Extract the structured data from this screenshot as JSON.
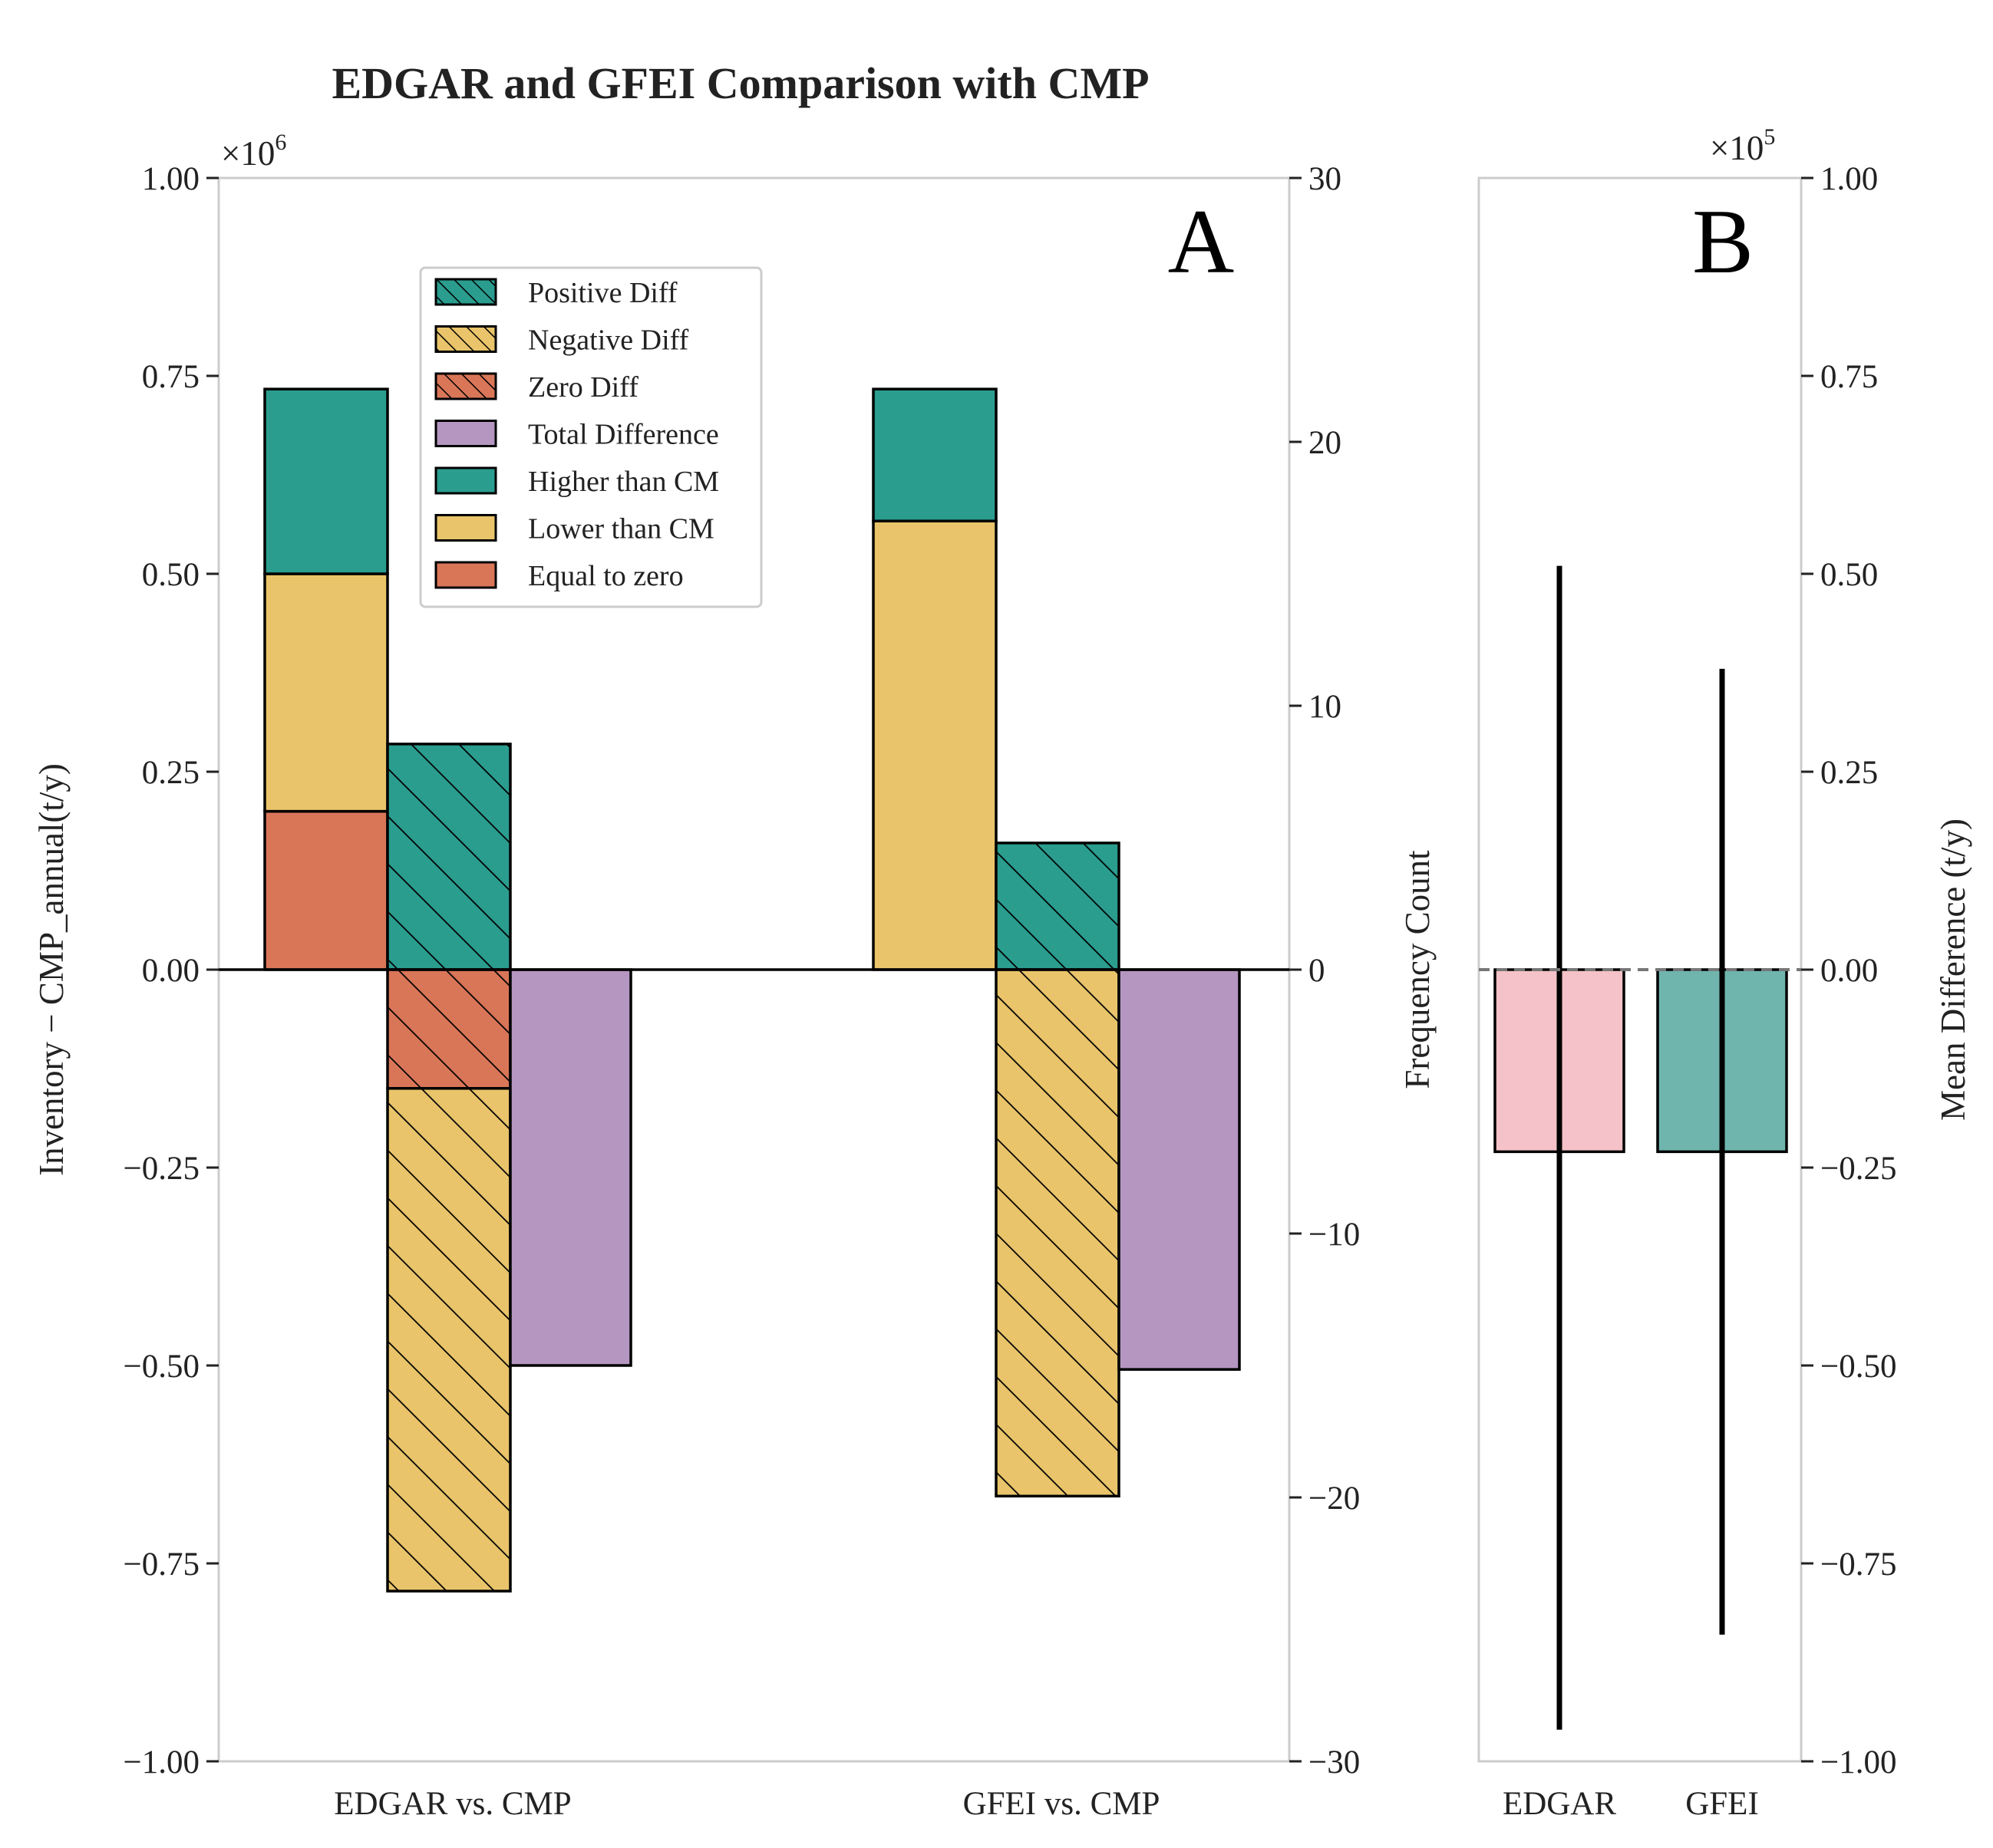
{
  "chart_data": [
    {
      "panel": "A",
      "type": "bar",
      "title": "EDGAR and GFEI Comparison with CMP",
      "panel_label": "A",
      "categories": [
        "EDGAR vs. CMP",
        "GFEI vs. CMP"
      ],
      "left_axis": {
        "label": "Inventory − CMP_annual(t/y)",
        "multiplier": "×10",
        "multiplier_exp": "6",
        "ylim": [
          -1.0,
          1.0
        ],
        "ticks": [
          1.0,
          0.75,
          0.5,
          0.25,
          0.0,
          -0.25,
          -0.5,
          -0.75,
          -1.0
        ],
        "tick_labels": [
          "1.00",
          "0.75",
          "0.50",
          "0.25",
          "0.00",
          "−0.25",
          "−0.50",
          "−0.75",
          "−1.00"
        ]
      },
      "right_axis": {
        "label": "Frequency Count",
        "ylim": [
          -30,
          30
        ],
        "ticks": [
          30,
          20,
          10,
          0,
          -10,
          -20,
          -30
        ],
        "tick_labels": [
          "30",
          "20",
          "10",
          "0",
          "−10",
          "−20",
          "−30"
        ]
      },
      "frequency_stack": [
        {
          "category": "EDGAR vs. CMP",
          "equal_to_zero": 6,
          "lower_than_cm": 9,
          "higher_than_cm": 7
        },
        {
          "category": "GFEI vs. CMP",
          "equal_to_zero": 0,
          "lower_than_cm": 17,
          "higher_than_cm": 5
        }
      ],
      "difference_stack": [
        {
          "category": "EDGAR vs. CMP",
          "positive_diff": 0.285,
          "zero_diff": -0.15,
          "negative_diff": -0.635
        },
        {
          "category": "GFEI vs. CMP",
          "positive_diff": 0.16,
          "zero_diff": 0.0,
          "negative_diff": -0.665
        }
      ],
      "total_difference": [
        {
          "category": "EDGAR vs. CMP",
          "value": -0.5
        },
        {
          "category": "GFEI vs. CMP",
          "value": -0.505
        }
      ],
      "legend": [
        {
          "label": "Positive Diff",
          "color": "#2a9d8f",
          "hatch": true
        },
        {
          "label": "Negative Diff",
          "color": "#e9c46a",
          "hatch": true
        },
        {
          "label": "Zero Diff",
          "color": "#d97658",
          "hatch": true
        },
        {
          "label": "Total Difference",
          "color": "#b596c0",
          "hatch": false
        },
        {
          "label": "Higher than CM",
          "color": "#2a9d8f",
          "hatch": false
        },
        {
          "label": "Lower than CM",
          "color": "#e9c46a",
          "hatch": false
        },
        {
          "label": "Equal to zero",
          "color": "#d97658",
          "hatch": false
        }
      ],
      "legend_position": "upper-center"
    },
    {
      "panel": "B",
      "type": "bar",
      "panel_label": "B",
      "categories": [
        "EDGAR",
        "GFEI"
      ],
      "values": [
        -0.23,
        -0.23
      ],
      "colors": [
        "#f4c2c8",
        "#6fb5ae"
      ],
      "error_bars": [
        [
          -0.96,
          0.51
        ],
        [
          -0.84,
          0.38
        ]
      ],
      "reference_line": 0.0,
      "right_axis": {
        "label": "Mean Difference (t/y)",
        "multiplier": "×10",
        "multiplier_exp": "5",
        "ylim": [
          -1.0,
          1.0
        ],
        "ticks": [
          1.0,
          0.75,
          0.5,
          0.25,
          0.0,
          -0.25,
          -0.5,
          -0.75,
          -1.0
        ],
        "tick_labels": [
          "1.00",
          "0.75",
          "0.50",
          "0.25",
          "0.00",
          "−0.25",
          "−0.50",
          "−0.75",
          "−1.00"
        ]
      }
    }
  ]
}
